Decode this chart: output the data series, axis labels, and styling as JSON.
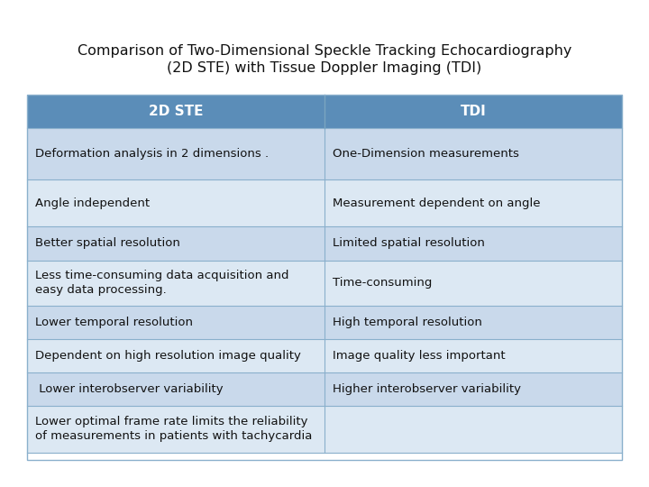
{
  "title": "Comparison of Two-Dimensional Speckle Tracking Echocardiography\n(2D STE) with Tissue Doppler Imaging (TDI)",
  "title_fontsize": 11.5,
  "header": [
    "2D STE",
    "TDI"
  ],
  "header_bg": "#5b8db8",
  "header_text_color": "#ffffff",
  "header_fontsize": 11,
  "rows": [
    [
      "Deformation analysis in 2 dimensions .",
      "One-Dimension measurements"
    ],
    [
      "Angle independent",
      "Measurement dependent on angle"
    ],
    [
      "Better spatial resolution",
      "Limited spatial resolution"
    ],
    [
      "Less time-consuming data acquisition and\neasy data processing.",
      "Time-consuming"
    ],
    [
      "Lower temporal resolution",
      "High temporal resolution"
    ],
    [
      "Dependent on high resolution image quality",
      "Image quality less important"
    ],
    [
      " Lower interobserver variability",
      "Higher interobserver variability"
    ],
    [
      "Lower optimal frame rate limits the reliability\nof measurements in patients with tachycardia",
      ""
    ]
  ],
  "row_bg_odd": "#c9d9eb",
  "row_bg_even": "#dce8f3",
  "row_text_color": "#111111",
  "row_fontsize": 9.5,
  "bg_color": "#ffffff",
  "divider_color": "#8ab0cc",
  "header_divider_color": "#7aa5c0"
}
